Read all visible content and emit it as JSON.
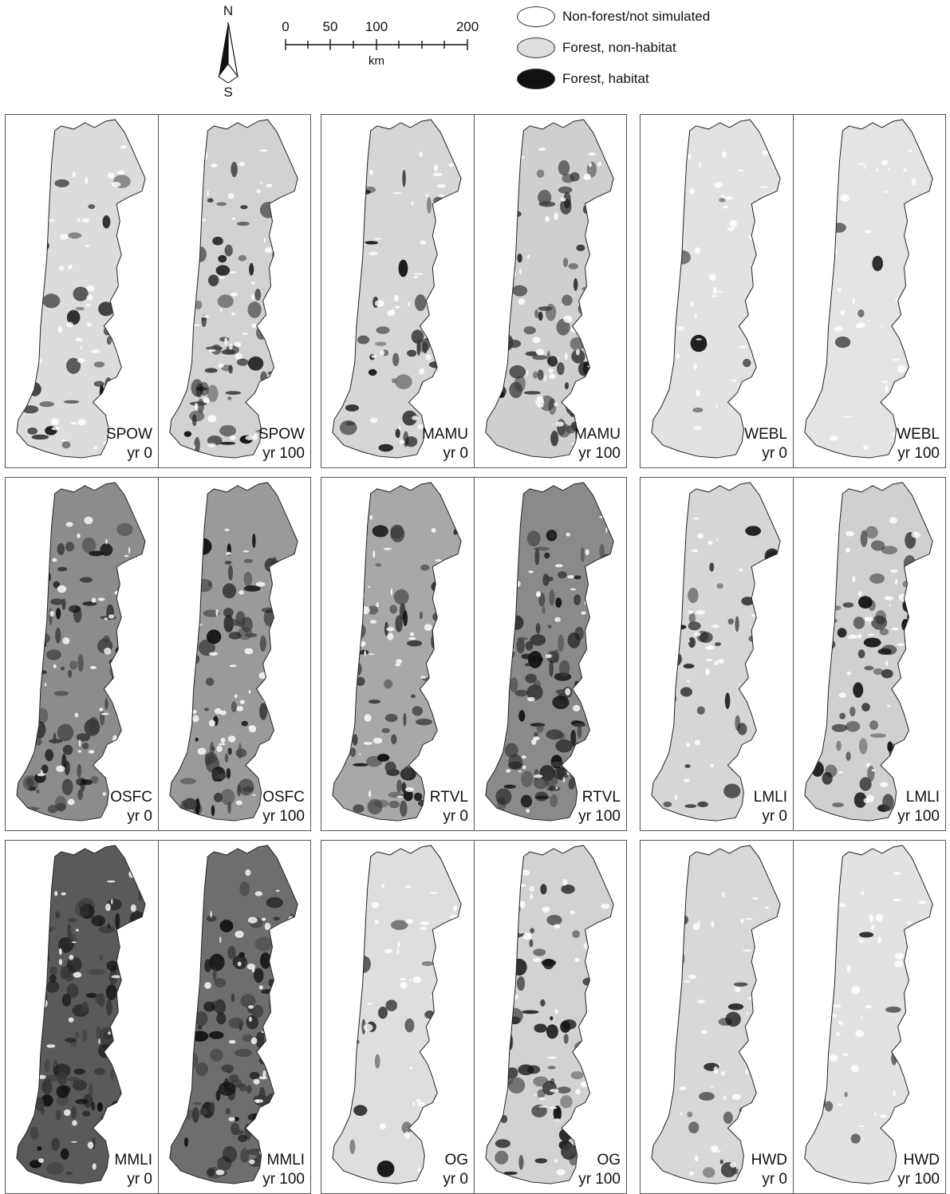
{
  "north_arrow": {
    "north": "N",
    "south": "S"
  },
  "scale_bar": {
    "ticks": [
      "0",
      "50",
      "100",
      "200"
    ],
    "unit": "km"
  },
  "legend": [
    {
      "label": "Non-forest/not simulated",
      "fill": "#ffffff"
    },
    {
      "label": "Forest, non-habitat",
      "fill": "#dedede"
    },
    {
      "label": "Forest, habitat",
      "fill": "#111111"
    }
  ],
  "panels": [
    {
      "species": "SPOW",
      "year": "yr 0",
      "tone": "#dcdcdc",
      "density": 0.25
    },
    {
      "species": "SPOW",
      "year": "yr 100",
      "tone": "#d2d2d2",
      "density": 0.55
    },
    {
      "species": "MAMU",
      "year": "yr 0",
      "tone": "#d6d6d6",
      "density": 0.35
    },
    {
      "species": "MAMU",
      "year": "yr 100",
      "tone": "#cfcfcf",
      "density": 0.6
    },
    {
      "species": "WEBL",
      "year": "yr 0",
      "tone": "#e2e2e2",
      "density": 0.06
    },
    {
      "species": "WEBL",
      "year": "yr 100",
      "tone": "#e4e4e4",
      "density": 0.03
    },
    {
      "species": "OSFC",
      "year": "yr 0",
      "tone": "#8c8c8c",
      "density": 0.65
    },
    {
      "species": "OSFC",
      "year": "yr 100",
      "tone": "#9a9a9a",
      "density": 0.6
    },
    {
      "species": "RTVL",
      "year": "yr 0",
      "tone": "#a8a8a8",
      "density": 0.55
    },
    {
      "species": "RTVL",
      "year": "yr 100",
      "tone": "#8a8a8a",
      "density": 0.75
    },
    {
      "species": "LMLI",
      "year": "yr 0",
      "tone": "#d6d6d6",
      "density": 0.3
    },
    {
      "species": "LMLI",
      "year": "yr 100",
      "tone": "#d0d0d0",
      "density": 0.55
    },
    {
      "species": "MMLI",
      "year": "yr 0",
      "tone": "#5a5a5a",
      "density": 0.8
    },
    {
      "species": "MMLI",
      "year": "yr 100",
      "tone": "#6e6e6e",
      "density": 0.8
    },
    {
      "species": "OG",
      "year": "yr 0",
      "tone": "#dedede",
      "density": 0.15
    },
    {
      "species": "OG",
      "year": "yr 100",
      "tone": "#d2d2d2",
      "density": 0.5
    },
    {
      "species": "HWD",
      "year": "yr 0",
      "tone": "#d8d8d8",
      "density": 0.12
    },
    {
      "species": "HWD",
      "year": "yr 100",
      "tone": "#e2e2e2",
      "density": 0.05
    }
  ]
}
